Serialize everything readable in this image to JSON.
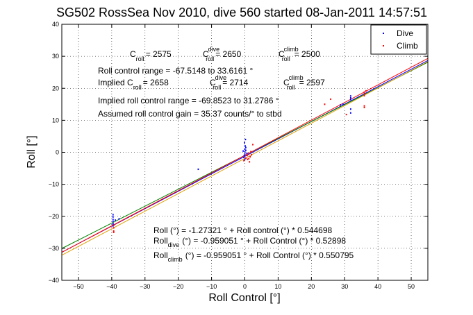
{
  "chart_data": {
    "type": "scatter",
    "title": "SG502 RossSea Nov 2010, dive 560 started 08-Jan-2011 14:57:51",
    "xlabel": "Roll Control [°]",
    "ylabel": "Roll [°]",
    "xlim": [
      -55,
      55
    ],
    "ylim": [
      -40,
      40
    ],
    "xticks": [
      -50,
      -40,
      -30,
      -20,
      -10,
      0,
      10,
      20,
      30,
      40,
      50
    ],
    "yticks": [
      -40,
      -30,
      -20,
      -10,
      0,
      10,
      20,
      30,
      40
    ],
    "grid": true,
    "legend_position": "top-right",
    "legend": [
      {
        "name": "Dive",
        "color": "#0000ff"
      },
      {
        "name": "Climb",
        "color": "#ff0000"
      }
    ],
    "series": [
      {
        "name": "Dive",
        "color": "#0000ff",
        "marker": "dot",
        "points": [
          [
            -39.6,
            -19.5
          ],
          [
            -39.6,
            -20.2
          ],
          [
            -39.6,
            -21.0
          ],
          [
            -39.6,
            -21.6
          ],
          [
            -39.6,
            -22.3
          ],
          [
            -39.6,
            -23.0
          ],
          [
            -39.6,
            -22.5
          ],
          [
            -38.9,
            -21.2
          ],
          [
            -37.8,
            -20.8
          ],
          [
            -14.0,
            -5.3
          ],
          [
            0.0,
            -0.5
          ],
          [
            0.0,
            0.2
          ],
          [
            0.0,
            1.0
          ],
          [
            0.1,
            2.0
          ],
          [
            -0.2,
            -1.0
          ],
          [
            -0.3,
            -1.6
          ],
          [
            0.3,
            0.6
          ],
          [
            0.3,
            1.5
          ],
          [
            -0.1,
            3.0
          ],
          [
            0.2,
            4.0
          ],
          [
            0.0,
            -2.2
          ],
          [
            -0.5,
            0.4
          ],
          [
            0.6,
            -0.3
          ],
          [
            31.8,
            12.3
          ],
          [
            31.8,
            13.5
          ],
          [
            31.8,
            16.5
          ],
          [
            31.8,
            17.0
          ],
          [
            31.8,
            17.6
          ],
          [
            29.5,
            15.0
          ],
          [
            28.7,
            14.8
          ]
        ]
      },
      {
        "name": "Climb",
        "color": "#ff0000",
        "marker": "dot",
        "points": [
          [
            -39.4,
            -22.8
          ],
          [
            -39.4,
            -23.6
          ],
          [
            -39.4,
            -24.6
          ],
          [
            -39.4,
            -25.0
          ],
          [
            -0.3,
            -2.6
          ],
          [
            0.3,
            -1.8
          ],
          [
            0.7,
            -1.0
          ],
          [
            1.0,
            -0.4
          ],
          [
            1.2,
            -2.0
          ],
          [
            1.6,
            -1.4
          ],
          [
            1.8,
            0.2
          ],
          [
            2.0,
            -0.8
          ],
          [
            2.4,
            2.4
          ],
          [
            1.4,
            -3.0
          ],
          [
            0.8,
            -2.2
          ],
          [
            35.9,
            18.8
          ],
          [
            35.9,
            18.3
          ],
          [
            35.9,
            17.7
          ],
          [
            35.9,
            14.5
          ],
          [
            35.9,
            14.0
          ],
          [
            36.4,
            19.2
          ],
          [
            24.0,
            15.0
          ],
          [
            25.8,
            16.6
          ],
          [
            30.5,
            11.8
          ]
        ]
      }
    ],
    "lines": [
      {
        "name": "fit",
        "color": "#0000ff",
        "intercept": -1.27321,
        "slope": 0.544698
      },
      {
        "name": "dive fit",
        "color": "#008000",
        "intercept": -0.959051,
        "slope": 0.52898
      },
      {
        "name": "climb fit",
        "color": "#ff0000",
        "intercept": -0.959051,
        "slope": 0.550795
      },
      {
        "name": "overall",
        "color": "#e0a000",
        "intercept": -1.9,
        "slope": 0.55
      }
    ],
    "annotations": {
      "c_line": {
        "c_roll_val": "= 2575",
        "c_dive_val": "= 2650",
        "c_climb_val": "= 2500"
      },
      "range_text": "Roll control range = -67.5148 to 33.6161 °",
      "implied_line": {
        "prefix": "Implied C",
        "c_roll_val": "= 2658",
        "c_dive_val": "= 2714",
        "c_climb_val": "= 2597"
      },
      "implied_range_text": "Implied roll control range = -69.8523 to 31.2786 °",
      "gain_text": "Assumed roll control gain = 35.37 counts/° to stbd",
      "fit_line_1": "Roll (°) = -1.27321 ° + Roll control (°) * 0.544698",
      "fit_line_2": "(°) = -0.959051 ° + Roll Control (°) * 0.52898",
      "fit_line_3": "(°) = -0.959051 ° + Roll Control (°) * 0.550795",
      "labels": {
        "C": "C",
        "roll": "roll",
        "dive": "dive",
        "climb": "climb",
        "Roll": "Roll"
      }
    }
  }
}
